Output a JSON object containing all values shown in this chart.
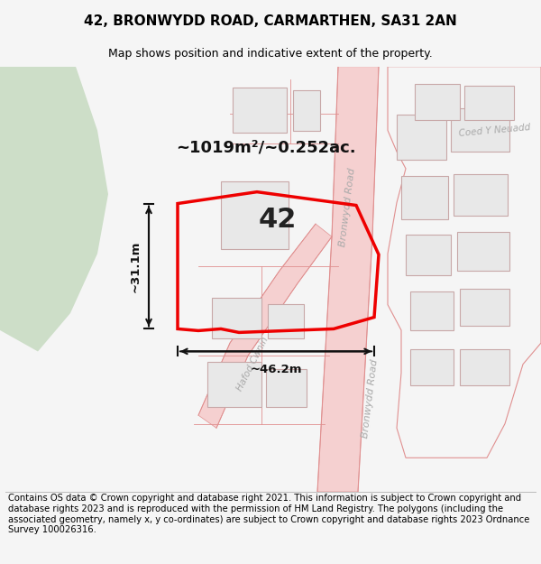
{
  "title": "42, BRONWYDD ROAD, CARMARTHEN, SA31 2AN",
  "subtitle": "Map shows position and indicative extent of the property.",
  "footer": "Contains OS data © Crown copyright and database right 2021. This information is subject to Crown copyright and database rights 2023 and is reproduced with the permission of HM Land Registry. The polygons (including the associated geometry, namely x, y co-ordinates) are subject to Crown copyright and database rights 2023 Ordnance Survey 100026316.",
  "area_label": "~1019m²/~0.252ac.",
  "width_label": "~46.2m",
  "height_label": "~31.1m",
  "property_label": "42",
  "background_color": "#f5f5f5",
  "map_background": "#ffffff",
  "green_area_color": "#cddec8",
  "property_outline_color": "#ee0000",
  "road_fill_color": "#f5d0d0",
  "road_line_color": "#e09090",
  "building_fill": "#e8e8e8",
  "building_edge": "#c8a8a8",
  "street_text_color": "#aaaaaa",
  "dim_color": "#111111",
  "title_fontsize": 11,
  "subtitle_fontsize": 9,
  "footer_fontsize": 7.2,
  "label_fontsize": 13,
  "number_fontsize": 22,
  "dim_fontsize": 9.5,
  "street_fontsize": 8
}
